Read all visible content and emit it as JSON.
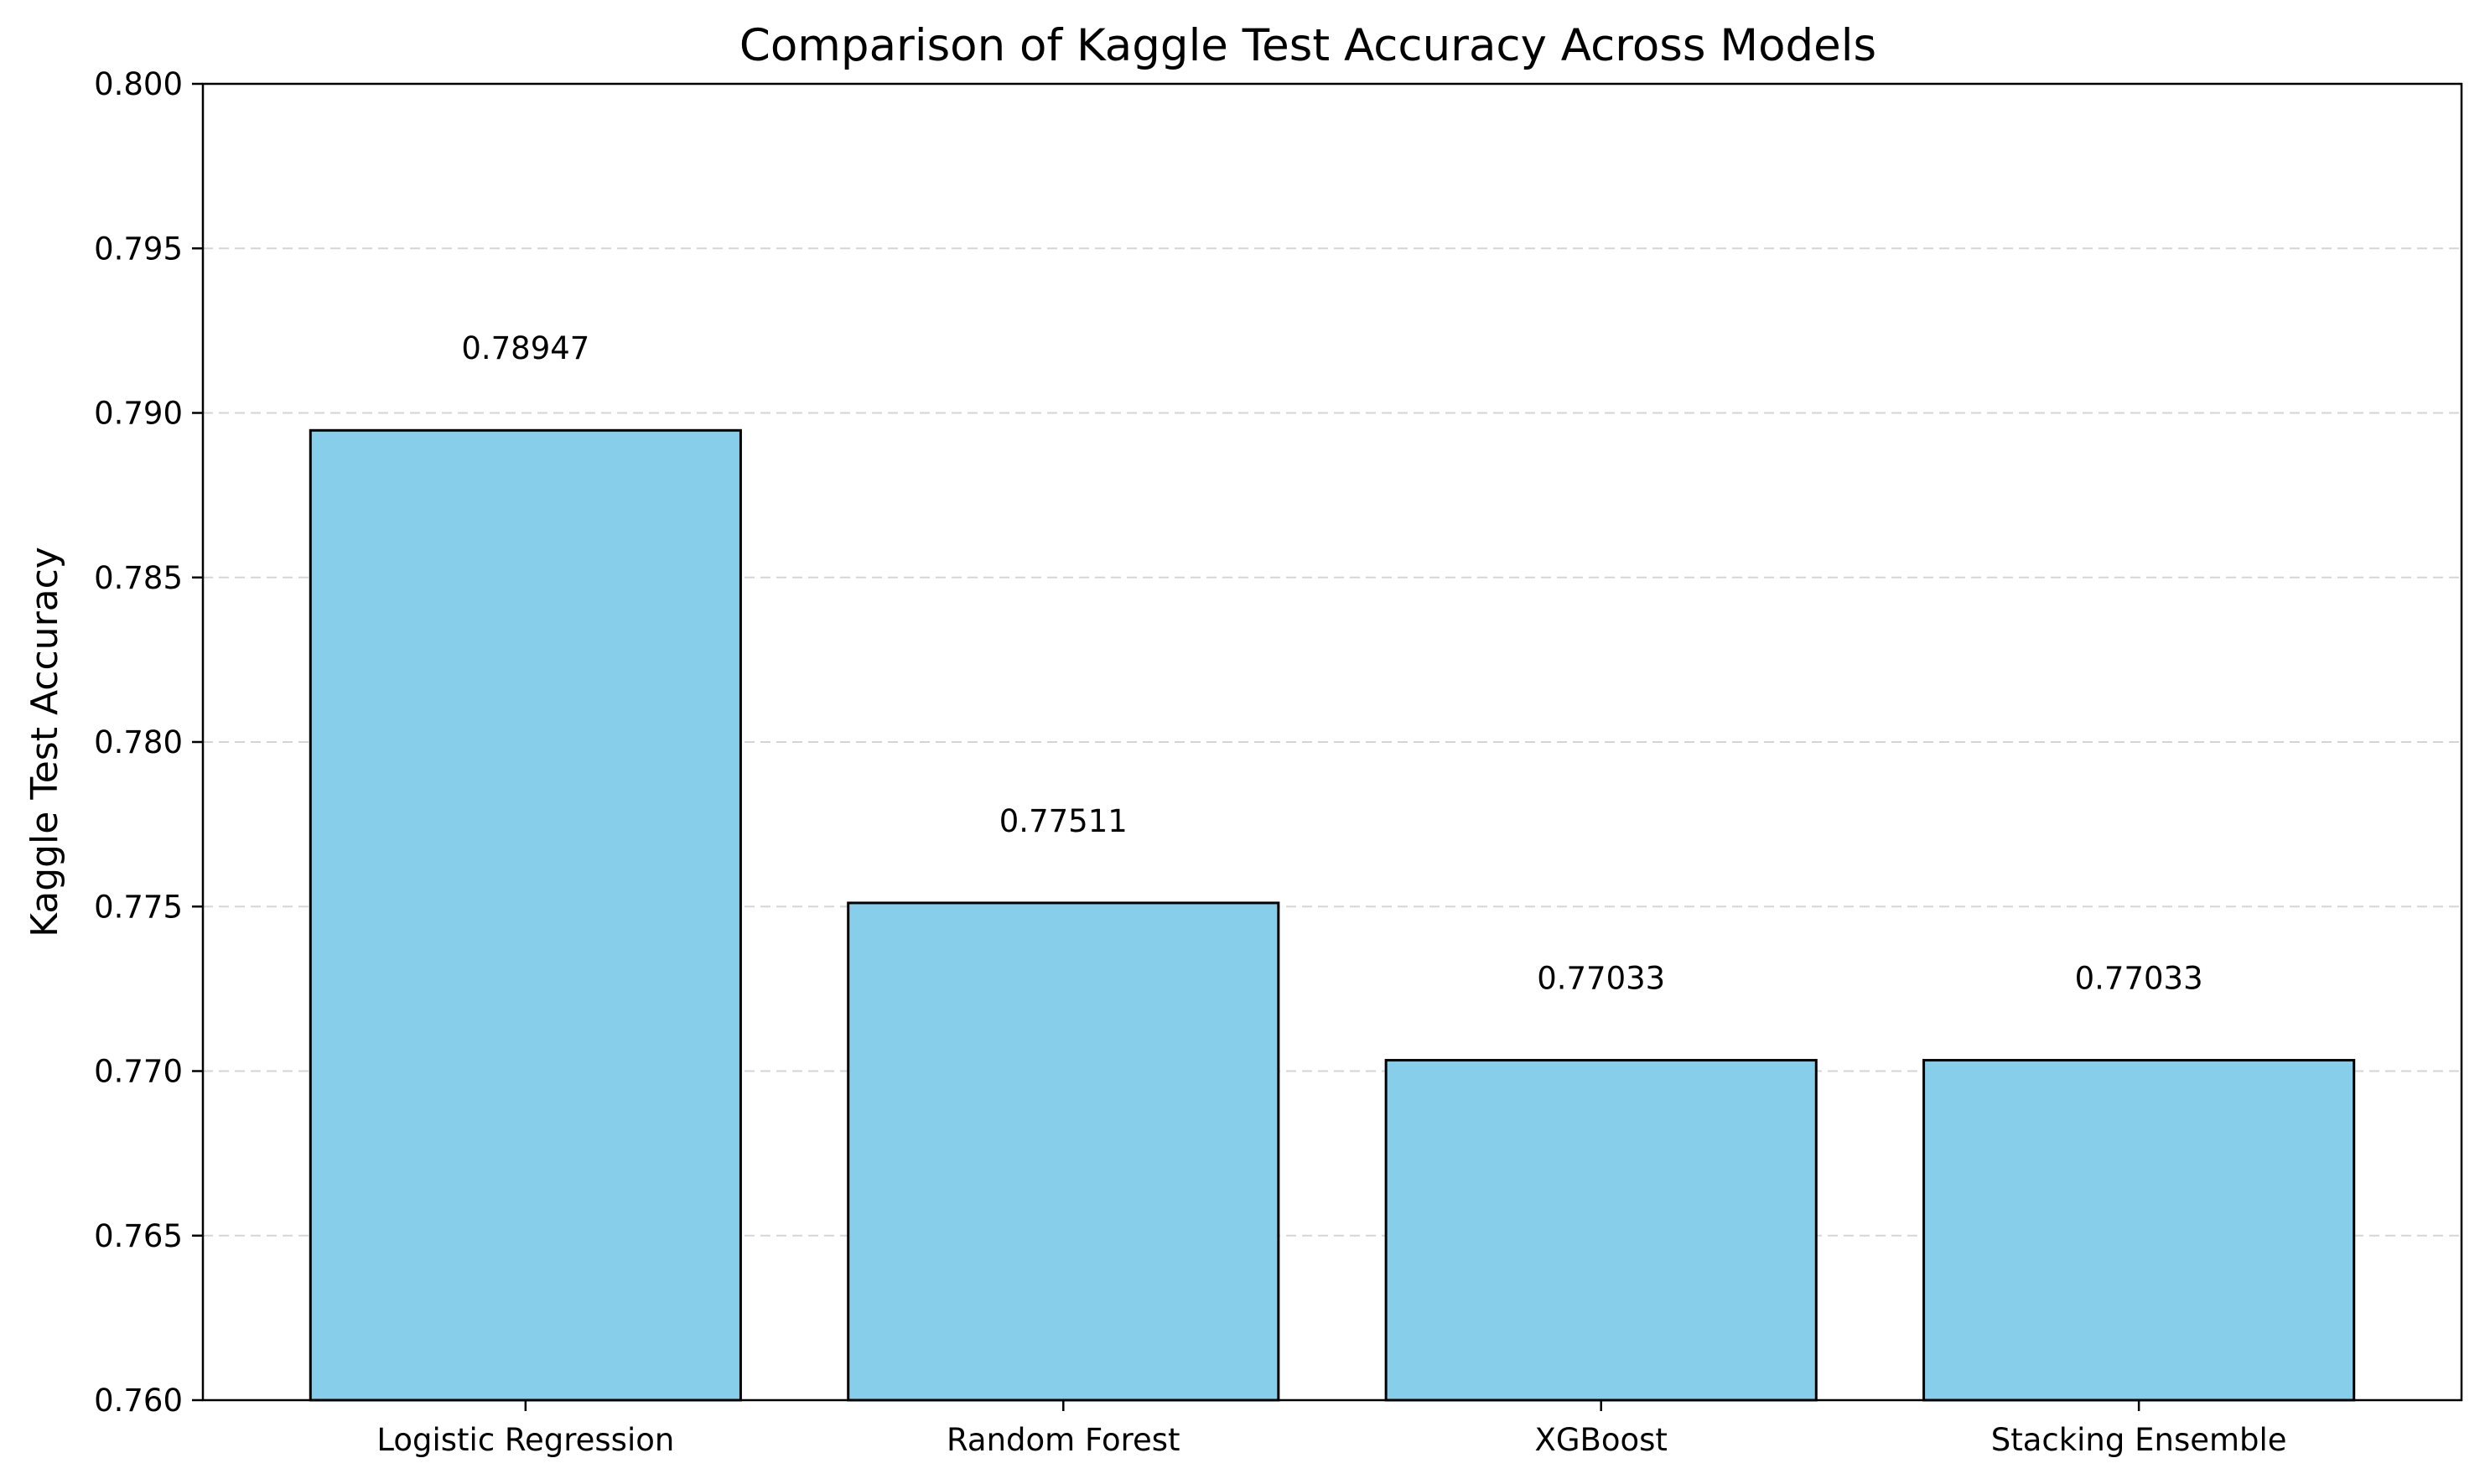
{
  "chart_data": {
    "type": "bar",
    "title": "Comparison of Kaggle Test Accuracy Across Models",
    "xlabel": "",
    "ylabel": "Kaggle Test Accuracy",
    "categories": [
      "Logistic Regression",
      "Random Forest",
      "XGBoost",
      "Stacking Ensemble"
    ],
    "values": [
      0.78947,
      0.77511,
      0.77033,
      0.77033
    ],
    "data_labels": [
      "0.78947",
      "0.77511",
      "0.77033",
      "0.77033"
    ],
    "ylim": [
      0.76,
      0.8
    ],
    "yticks": [
      "0.760",
      "0.765",
      "0.770",
      "0.775",
      "0.780",
      "0.785",
      "0.790",
      "0.795",
      "0.800"
    ],
    "grid": "horizontal dashed",
    "bar_color": "#87ceeb",
    "edge_color": "#000000"
  }
}
